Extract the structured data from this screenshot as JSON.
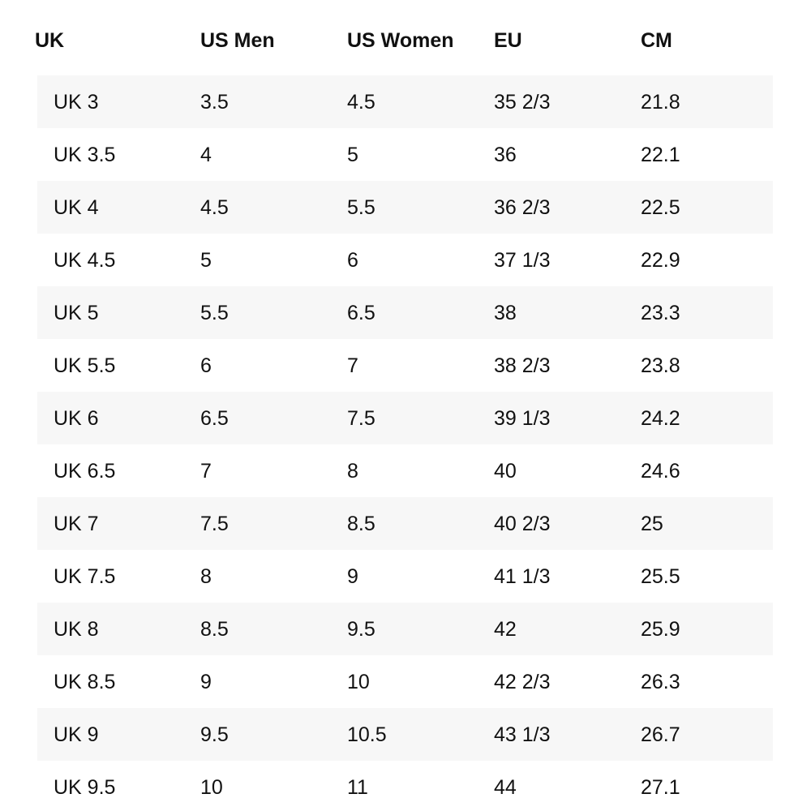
{
  "table": {
    "header": [
      "UK",
      "US Men",
      "US Women",
      "EU",
      "CM"
    ],
    "rows": [
      [
        "UK 3",
        "3.5",
        "4.5",
        "35 2/3",
        "21.8"
      ],
      [
        "UK 3.5",
        "4",
        "5",
        "36",
        "22.1"
      ],
      [
        "UK 4",
        "4.5",
        "5.5",
        "36 2/3",
        "22.5"
      ],
      [
        "UK 4.5",
        "5",
        "6",
        "37 1/3",
        "22.9"
      ],
      [
        "UK 5",
        "5.5",
        "6.5",
        "38",
        "23.3"
      ],
      [
        "UK 5.5",
        "6",
        "7",
        "38 2/3",
        "23.8"
      ],
      [
        "UK 6",
        "6.5",
        "7.5",
        "39 1/3",
        "24.2"
      ],
      [
        "UK 6.5",
        "7",
        "8",
        "40",
        "24.6"
      ],
      [
        "UK 7",
        "7.5",
        "8.5",
        "40 2/3",
        "25"
      ],
      [
        "UK 7.5",
        "8",
        "9",
        "41 1/3",
        "25.5"
      ],
      [
        "UK 8",
        "8.5",
        "9.5",
        "42",
        "25.9"
      ],
      [
        "UK 8.5",
        "9",
        "10",
        "42 2/3",
        "26.3"
      ],
      [
        "UK 9",
        "9.5",
        "10.5",
        "43 1/3",
        "26.7"
      ],
      [
        "UK 9.5",
        "10",
        "11",
        "44",
        "27.1"
      ]
    ]
  }
}
